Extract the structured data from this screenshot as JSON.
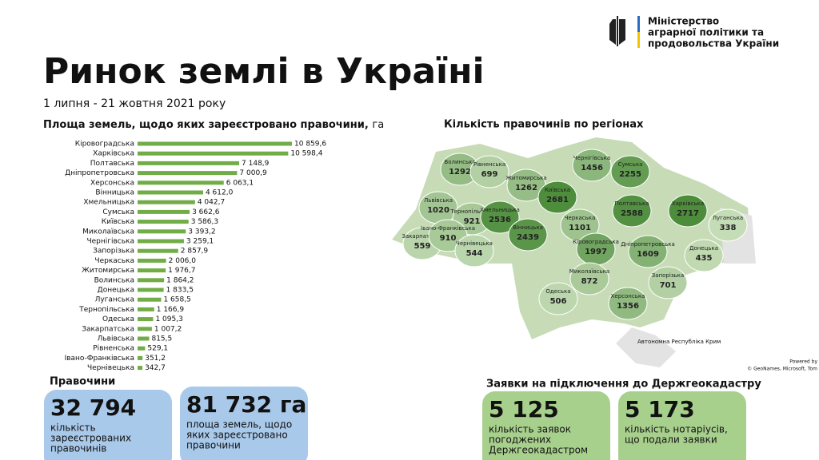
{
  "header": {
    "ministry": [
      "Міністерство",
      "аграрної політики та",
      "продовольства України"
    ],
    "title": "Ринок землі в Україні",
    "period": "1 липня - 21 жовтня 2021 року"
  },
  "chart_data": {
    "type": "bar",
    "orientation": "horizontal",
    "title": "Площа земель, щодо яких зареєстровано правочини,",
    "unit": "га",
    "color": "#70ad47",
    "categories": [
      "Кіровоградська",
      "Харківська",
      "Полтавська",
      "Дніпропетровська",
      "Херсонська",
      "Вінницька",
      "Хмельницька",
      "Сумська",
      "Київська",
      "Миколаївська",
      "Чернігівська",
      "Запорізька",
      "Черкаська",
      "Житомирська",
      "Волинська",
      "Донецька",
      "Луганська",
      "Тернопільська",
      "Одеська",
      "Закарпатська",
      "Львівська",
      "Рівненська",
      "Івано-Франківська",
      "Чернівецька"
    ],
    "values": [
      10859.6,
      10598.4,
      7148.9,
      7000.9,
      6063.1,
      4612.0,
      4042.7,
      3662.6,
      3586.3,
      3393.2,
      3259.1,
      2857.9,
      2006.0,
      1976.7,
      1864.2,
      1833.5,
      1658.5,
      1166.9,
      1095.3,
      1007.2,
      815.5,
      529.1,
      351.2,
      342.7
    ],
    "value_labels": [
      "10 859,6",
      "10 598,4",
      "7 148,9",
      "7 000,9",
      "6 063,1",
      "4 612,0",
      "4 042,7",
      "3 662,6",
      "3 586,3",
      "3 393,2",
      "3 259,1",
      "2 857,9",
      "2 006,0",
      "1 976,7",
      "1 864,2",
      "1 833,5",
      "1 658,5",
      "1 166,9",
      "1 095,3",
      "1 007,2",
      "815,5",
      "529,1",
      "351,2",
      "342,7"
    ]
  },
  "map": {
    "title": "Кількість правочинів по регіонах",
    "regions": [
      {
        "name": "Волинська",
        "value": 1292
      },
      {
        "name": "Рівненська",
        "value": 699
      },
      {
        "name": "Житомирська",
        "value": 1262
      },
      {
        "name": "Київська",
        "value": 2681
      },
      {
        "name": "Чернігівська",
        "value": 1456
      },
      {
        "name": "Сумська",
        "value": 2255
      },
      {
        "name": "Львівська",
        "value": 1020
      },
      {
        "name": "Тернопільська",
        "value": 921
      },
      {
        "name": "Хмельницька",
        "value": 2536
      },
      {
        "name": "Вінницька",
        "value": 2439
      },
      {
        "name": "Черкаська",
        "value": 1101
      },
      {
        "name": "Полтавська",
        "value": 2588
      },
      {
        "name": "Харківська",
        "value": 2717
      },
      {
        "name": "Луганська",
        "value": 338
      },
      {
        "name": "Закарпатська",
        "value": 559
      },
      {
        "name": "Івано-Франківська",
        "value": 910
      },
      {
        "name": "Чернівецька",
        "value": 544
      },
      {
        "name": "Кіровоградська",
        "value": 1997
      },
      {
        "name": "Дніпропетровська",
        "value": 1609
      },
      {
        "name": "Донецька",
        "value": 435
      },
      {
        "name": "Одеська",
        "value": 506
      },
      {
        "name": "Миколаївська",
        "value": 872
      },
      {
        "name": "Запорізька",
        "value": 701
      },
      {
        "name": "Херсонська",
        "value": 1356
      }
    ],
    "crimea": "Автономна Республіка Крим",
    "powered": "Powered by",
    "copyright": "© GeoNames, Microsoft, Tom"
  },
  "deals": {
    "heading": "Правочини",
    "cards": [
      {
        "number": "32 794",
        "text": [
          "кількість",
          "зареєстрованих",
          "правочинів"
        ]
      },
      {
        "number": "81 732 га",
        "text": [
          "площа земель, щодо",
          "яких зареєстровано",
          "правочини"
        ]
      }
    ]
  },
  "requests": {
    "heading": "Заявки на підключення до Держгеокадастру",
    "cards": [
      {
        "number": "5 125",
        "text": [
          "кількість заявок",
          "погоджених",
          "Держгеокадастром"
        ]
      },
      {
        "number": "5 173",
        "text": [
          "кількість нотаріусів,",
          "що подали заявки"
        ]
      }
    ]
  }
}
